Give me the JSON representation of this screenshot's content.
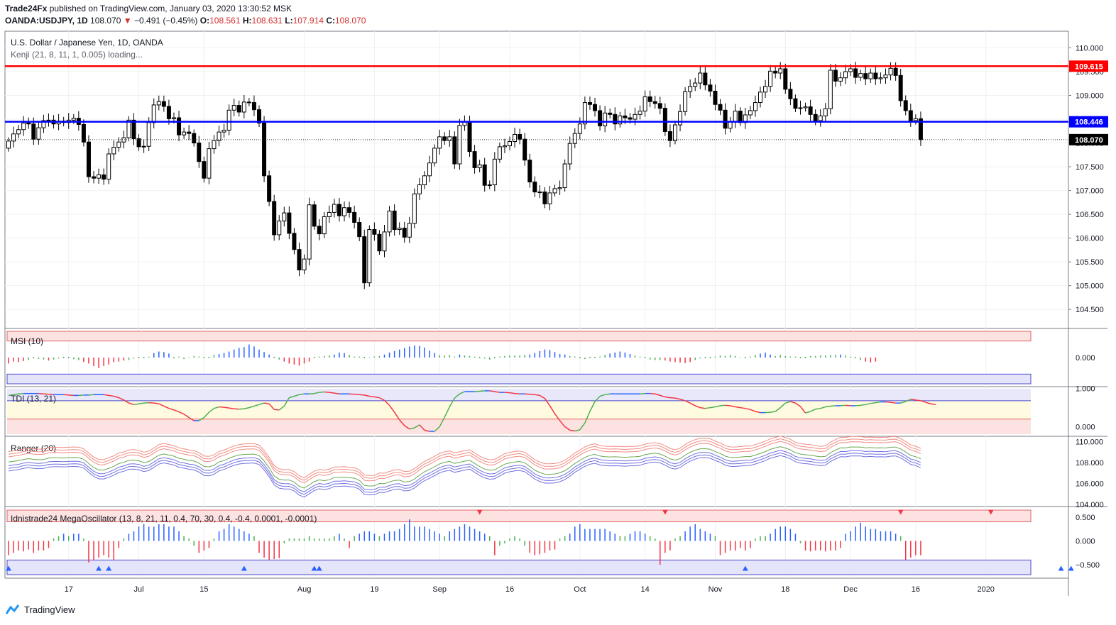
{
  "header": {
    "author": "Trade24Fx",
    "published_text": "published on TradingView.com, January 03, 2020 13:30:52 MSK",
    "symbol": "OANDA:USDJPY, 1D",
    "last": "108.070",
    "change": "−0.491 (−0.45%)",
    "o_label": "O:",
    "o": "108.561",
    "h_label": "H:",
    "h": "108.631",
    "l_label": "L:",
    "l": "107.914",
    "c_label": "C:",
    "c": "108.070"
  },
  "footer": {
    "brand": "TradingView"
  },
  "colors": {
    "up": "#ffffff",
    "down": "#000000",
    "resistance": "#ff0000",
    "support": "#0000ff",
    "blue_marker": "#2962ff",
    "red_marker": "#f23645",
    "green": "#4caf50"
  },
  "chart_data": [
    {
      "type": "candlestick",
      "title": "U.S. Dollar / Japanese Yen, 1D, OANDA",
      "subtitle": "Kenji (21, 8, 11, 1, 0.005) loading...",
      "y_ticks": [
        104.5,
        105.0,
        105.5,
        106.0,
        106.5,
        107.0,
        107.5,
        108.0,
        108.5,
        109.0,
        109.5,
        110.0
      ],
      "ylim": [
        104.1,
        110.35
      ],
      "x_ticks": [
        "17",
        "Jul",
        "15",
        "Aug",
        "19",
        "Sep",
        "16",
        "Oct",
        "14",
        "Nov",
        "18",
        "Dec",
        "16",
        "2020"
      ],
      "x_tick_bars": [
        12,
        26,
        39,
        59,
        73,
        86,
        100,
        114,
        127,
        141,
        155,
        168,
        181,
        195
      ],
      "levels": [
        {
          "value": 109.615,
          "label": "109.615",
          "color": "#ff0000"
        },
        {
          "value": 108.446,
          "label": "108.446",
          "color": "#0000ff"
        }
      ],
      "last_price": {
        "value": 108.07,
        "label": "108.070"
      },
      "closes": [
        108.04,
        108.19,
        108.28,
        108.42,
        108.4,
        108.08,
        108.32,
        108.47,
        108.48,
        108.4,
        108.46,
        108.43,
        108.48,
        108.52,
        108.39,
        108.02,
        107.29,
        107.26,
        107.33,
        107.24,
        107.77,
        107.91,
        108.02,
        108.11,
        108.48,
        108.09,
        107.92,
        107.93,
        108.43,
        108.8,
        108.87,
        108.77,
        108.51,
        108.53,
        108.17,
        108.23,
        108.2,
        108.0,
        107.61,
        107.26,
        107.88,
        108.05,
        108.23,
        108.27,
        108.69,
        108.79,
        108.65,
        108.86,
        108.85,
        108.7,
        108.42,
        107.31,
        106.77,
        106.07,
        106.36,
        106.53,
        106.1,
        105.76,
        105.33,
        105.56,
        106.7,
        106.25,
        106.09,
        106.45,
        106.54,
        106.71,
        106.47,
        106.64,
        106.54,
        106.33,
        106.03,
        105.06,
        106.18,
        106.08,
        105.73,
        106.13,
        106.57,
        106.18,
        106.21,
        106.02,
        106.31,
        106.93,
        107.12,
        107.31,
        107.58,
        107.89,
        108.13,
        108.05,
        108.13,
        107.56,
        108.37,
        108.45,
        107.82,
        107.48,
        107.54,
        107.11,
        107.12,
        107.66,
        107.92,
        107.94,
        108.03,
        108.18,
        108.08,
        107.64,
        107.18,
        106.97,
        106.97,
        106.72,
        106.95,
        107.04,
        107.06,
        107.56,
        107.99,
        108.2,
        108.4,
        108.85,
        108.81,
        108.68,
        108.36,
        108.63,
        108.6,
        108.4,
        108.57,
        108.53,
        108.5,
        108.6,
        108.67,
        108.97,
        108.87,
        108.83,
        108.73,
        108.24,
        108.05,
        108.38,
        108.66,
        109.08,
        109.19,
        109.26,
        109.47,
        109.22,
        109.09,
        108.81,
        108.69,
        108.31,
        108.45,
        108.67,
        108.43,
        108.59,
        108.68,
        108.85,
        109.07,
        109.19,
        109.51,
        109.47,
        109.56,
        109.13,
        108.93,
        108.73,
        108.74,
        108.76,
        108.6,
        108.47,
        108.57,
        108.72,
        109.53,
        109.3,
        109.37,
        109.5,
        109.56,
        109.38,
        109.46,
        109.35,
        109.47,
        109.35,
        109.37,
        109.43,
        109.57,
        109.42,
        108.89,
        108.68,
        108.47,
        108.51,
        108.07
      ],
      "msi": {
        "name": "MSI (10)",
        "y_ticks": [
          0.0
        ],
        "ylim": [
          -0.58,
          0.58
        ],
        "band_upper": 0.33,
        "band_lower": -0.33,
        "values": [
          -0.12,
          -0.08,
          -0.09,
          -0.07,
          -0.05,
          0.0,
          -0.03,
          -0.04,
          -0.06,
          -0.04,
          -0.02,
          0.0,
          0.0,
          -0.03,
          -0.05,
          -0.09,
          -0.12,
          -0.17,
          -0.21,
          -0.17,
          -0.14,
          -0.09,
          -0.08,
          -0.06,
          -0.05,
          -0.02,
          0.0,
          0.0,
          0.02,
          0.09,
          0.12,
          0.11,
          0.08,
          0.0,
          0.02,
          -0.03,
          0.01,
          0.03,
          0.02,
          0.0,
          0.0,
          0.05,
          0.07,
          0.09,
          0.12,
          0.16,
          0.19,
          0.21,
          0.26,
          0.22,
          0.16,
          0.11,
          0.06,
          0.0,
          -0.04,
          -0.08,
          -0.12,
          -0.14,
          -0.16,
          -0.12,
          -0.08,
          0.0,
          0.02,
          0.03,
          0.04,
          0.06,
          0.1,
          0.09,
          0.05,
          0.02,
          0.02,
          0.0,
          0.01,
          0.02,
          0.03,
          0.06,
          0.1,
          0.13,
          0.16,
          0.19,
          0.22,
          0.24,
          0.23,
          0.2,
          0.14,
          0.09,
          0.05,
          0.04,
          0.05,
          0.02,
          0.06,
          0.04,
          0.03,
          0.02,
          0.0,
          -0.02,
          -0.04,
          0.0,
          0.02,
          0.03,
          0.04,
          0.04,
          0.04,
          0.05,
          0.06,
          0.09,
          0.13,
          0.16,
          0.15,
          0.11,
          0.07,
          0.06,
          0.03,
          0.02,
          0.0,
          -0.03,
          0.0,
          0.0,
          0.02,
          0.05,
          0.08,
          0.1,
          0.12,
          0.1,
          0.07,
          0.04,
          0.02,
          0.0,
          -0.04,
          -0.05,
          -0.05,
          -0.06,
          -0.08,
          -0.09,
          -0.1,
          -0.11,
          -0.09,
          -0.05,
          -0.02,
          0.0,
          0.0,
          0.02,
          0.04,
          0.03,
          0.05,
          0.03,
          0.01,
          0.0,
          0.02,
          0.05,
          0.08,
          0.1,
          0.06,
          0.03,
          0.05,
          0.03,
          0.02,
          0.02,
          0.0,
          0.0,
          0.03,
          0.03,
          0.04,
          0.04,
          0.05,
          0.05,
          0.06,
          0.04,
          0.02,
          0.0,
          -0.05,
          -0.08,
          -0.1,
          -0.08
        ]
      },
      "tdi": {
        "name": "TDI (13, 21)",
        "y_ticks": [
          0.0,
          1.0
        ],
        "ylim": [
          -0.25,
          1.05
        ],
        "upper_level": 0.68,
        "lower_level": 0.2,
        "values": [
          0.82,
          0.84,
          0.86,
          0.87,
          0.87,
          0.87,
          0.87,
          0.86,
          0.85,
          0.84,
          0.84,
          0.84,
          0.83,
          0.82,
          0.82,
          0.83,
          0.83,
          0.84,
          0.84,
          0.84,
          0.82,
          0.8,
          0.76,
          0.7,
          0.62,
          0.58,
          0.6,
          0.62,
          0.63,
          0.62,
          0.6,
          0.54,
          0.48,
          0.44,
          0.39,
          0.33,
          0.24,
          0.16,
          0.16,
          0.24,
          0.38,
          0.48,
          0.52,
          0.51,
          0.49,
          0.47,
          0.46,
          0.47,
          0.5,
          0.54,
          0.58,
          0.62,
          0.6,
          0.45,
          0.44,
          0.54,
          0.76,
          0.8,
          0.84,
          0.86,
          0.86,
          0.87,
          0.9,
          0.91,
          0.9,
          0.88,
          0.86,
          0.86,
          0.86,
          0.85,
          0.84,
          0.83,
          0.8,
          0.78,
          0.76,
          0.69,
          0.56,
          0.38,
          0.18,
          0.03,
          -0.06,
          -0.03,
          0.05,
          -0.09,
          -0.12,
          -0.12,
          0.0,
          0.25,
          0.52,
          0.75,
          0.86,
          0.92,
          0.92,
          0.92,
          0.93,
          0.94,
          0.94,
          0.92,
          0.9,
          0.9,
          0.89,
          0.87,
          0.86,
          0.86,
          0.85,
          0.84,
          0.82,
          0.74,
          0.55,
          0.34,
          0.16,
          0.0,
          -0.09,
          -0.11,
          -0.08,
          0.1,
          0.4,
          0.66,
          0.8,
          0.84,
          0.86,
          0.86,
          0.86,
          0.86,
          0.86,
          0.86,
          0.86,
          0.87,
          0.87,
          0.86,
          0.82,
          0.78,
          0.76,
          0.75,
          0.72,
          0.68,
          0.62,
          0.55,
          0.5,
          0.48,
          0.5,
          0.52,
          0.55,
          0.56,
          0.55,
          0.52,
          0.5,
          0.48,
          0.45,
          0.4,
          0.37,
          0.37,
          0.38,
          0.4,
          0.5,
          0.62,
          0.66,
          0.62,
          0.53,
          0.36,
          0.4,
          0.46,
          0.48,
          0.52,
          0.54,
          0.55,
          0.55,
          0.56,
          0.55,
          0.55,
          0.56,
          0.58,
          0.61,
          0.63,
          0.65,
          0.65,
          0.64,
          0.62,
          0.62,
          0.66,
          0.72,
          0.7,
          0.68,
          0.64,
          0.6,
          0.58
        ]
      },
      "ranger": {
        "name": "Ranger (20)",
        "y_ticks": [
          104.0,
          106.0,
          108.0,
          110.0
        ],
        "ylim": [
          103.8,
          110.5
        ]
      },
      "mega": {
        "name": "Idnistrade24 MegaOscillator (13, 8, 21, 11, 0.4, 70, 30, 0.4, -0.4, 0.0001, -0.0001)",
        "y_ticks": [
          -0.5,
          0.0,
          0.5
        ],
        "ylim": [
          -0.78,
          0.72
        ],
        "band_upper": 0.4,
        "band_lower": -0.4,
        "values": [
          -0.3,
          -0.25,
          -0.2,
          -0.22,
          -0.18,
          -0.25,
          -0.2,
          -0.2,
          -0.15,
          0.05,
          0.1,
          0.15,
          0.1,
          0.15,
          0.15,
          0.05,
          -0.45,
          -0.4,
          -0.35,
          -0.3,
          -0.35,
          -0.4,
          -0.15,
          0.05,
          0.15,
          0.2,
          0.3,
          0.35,
          0.3,
          0.3,
          0.35,
          0.35,
          0.3,
          0.3,
          0.2,
          0.1,
          0.05,
          -0.1,
          -0.25,
          -0.2,
          -0.15,
          0.05,
          0.2,
          0.25,
          0.35,
          0.3,
          0.25,
          0.2,
          0.15,
          0.1,
          -0.25,
          -0.35,
          -0.4,
          -0.38,
          -0.36,
          -0.05,
          0.05,
          0.05,
          0.05,
          0.05,
          0.1,
          0.05,
          0.05,
          0.05,
          0.05,
          0.1,
          0.15,
          0.05,
          -0.15,
          0.1,
          0.15,
          0.2,
          0.2,
          0.15,
          0.1,
          0.15,
          0.2,
          0.2,
          0.25,
          0.35,
          0.45,
          0.3,
          0.3,
          0.3,
          0.25,
          0.2,
          0.15,
          0.1,
          0.2,
          0.25,
          0.3,
          0.35,
          0.3,
          0.25,
          0.2,
          0.15,
          0.1,
          -0.3,
          -0.1,
          -0.05,
          0.05,
          0.1,
          0.05,
          -0.1,
          -0.25,
          -0.3,
          -0.28,
          -0.25,
          -0.2,
          -0.18,
          0.05,
          0.1,
          0.15,
          0.3,
          0.35,
          0.25,
          0.25,
          0.25,
          0.25,
          0.25,
          0.2,
          0.15,
          0.1,
          0.1,
          0.15,
          0.2,
          0.2,
          0.15,
          0.1,
          0.05,
          -0.5,
          -0.25,
          -0.2,
          0.05,
          0.1,
          0.2,
          0.3,
          0.35,
          0.25,
          0.2,
          0.15,
          0.1,
          -0.3,
          -0.25,
          -0.2,
          -0.2,
          -0.15,
          -0.2,
          -0.15,
          0.05,
          0.1,
          0.1,
          0.15,
          0.25,
          0.3,
          0.3,
          0.25,
          0.15,
          -0.05,
          -0.2,
          -0.22,
          -0.2,
          -0.2,
          -0.22,
          -0.2,
          -0.2,
          -0.15,
          0.15,
          0.2,
          0.3,
          0.38,
          0.3,
          0.25,
          0.25,
          0.2,
          0.2,
          0.2,
          0.15,
          0.1,
          -0.4,
          -0.35,
          -0.3,
          -0.3
        ]
      },
      "mega_markers": {
        "up": [
          0,
          18,
          20,
          47,
          61,
          62,
          147,
          210,
          212
        ],
        "down": [
          94,
          131,
          178,
          196
        ]
      }
    }
  ]
}
